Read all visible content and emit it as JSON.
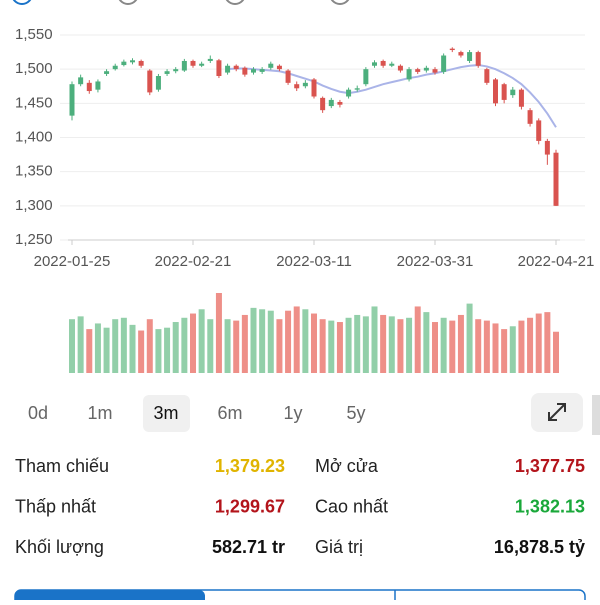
{
  "chart_data": {
    "type": "candlestick",
    "categories": [
      "2022-01-25",
      null,
      null,
      null,
      null,
      null,
      null,
      null,
      null,
      null,
      null,
      null,
      null,
      null,
      "2022-02-21",
      null,
      null,
      null,
      null,
      null,
      null,
      null,
      null,
      null,
      null,
      null,
      null,
      null,
      "2022-03-11",
      null,
      null,
      null,
      null,
      null,
      null,
      null,
      null,
      null,
      null,
      null,
      null,
      null,
      "2022-03-31",
      null,
      null,
      null,
      null,
      null,
      null,
      null,
      null,
      null,
      null,
      null,
      null,
      null,
      "2022-04-21"
    ],
    "open": [
      1432,
      1478,
      1480,
      1470,
      1493,
      1500,
      1506,
      1510,
      1512,
      1498,
      1470,
      1493,
      1497,
      1498,
      1512,
      1505,
      1512,
      1513,
      1495,
      1505,
      1502,
      1495,
      1496,
      1502,
      1505,
      1498,
      1478,
      1475,
      1485,
      1458,
      1446,
      1452,
      1460,
      1470,
      1478,
      1505,
      1512,
      1505,
      1505,
      1485,
      1500,
      1498,
      1500,
      1496,
      1530,
      1525,
      1512,
      1525,
      1500,
      1485,
      1478,
      1462,
      1470,
      1440,
      1425,
      1395,
      1377.75
    ],
    "close": [
      1478,
      1488,
      1468,
      1482,
      1497,
      1505,
      1511,
      1513,
      1505,
      1466,
      1490,
      1497,
      1500,
      1512,
      1505,
      1508,
      1515,
      1490,
      1505,
      1500,
      1492,
      1500,
      1500,
      1508,
      1500,
      1480,
      1472,
      1480,
      1460,
      1440,
      1455,
      1448,
      1470,
      1472,
      1500,
      1510,
      1505,
      1508,
      1498,
      1500,
      1496,
      1502,
      1495,
      1520,
      1528,
      1520,
      1525,
      1505,
      1480,
      1450,
      1455,
      1470,
      1445,
      1420,
      1395,
      1375,
      1300
    ],
    "high": [
      1482,
      1492,
      1484,
      1485,
      1500,
      1508,
      1514,
      1516,
      1514,
      1500,
      1493,
      1500,
      1503,
      1515,
      1514,
      1511,
      1520,
      1515,
      1508,
      1507,
      1504,
      1503,
      1503,
      1511,
      1507,
      1500,
      1482,
      1484,
      1487,
      1460,
      1458,
      1455,
      1473,
      1476,
      1503,
      1513,
      1514,
      1511,
      1507,
      1503,
      1502,
      1505,
      1503,
      1523,
      1532,
      1527,
      1528,
      1527,
      1502,
      1487,
      1480,
      1474,
      1472,
      1443,
      1428,
      1398,
      1382.13
    ],
    "low": [
      1425,
      1475,
      1464,
      1466,
      1490,
      1498,
      1504,
      1507,
      1502,
      1462,
      1467,
      1490,
      1494,
      1496,
      1502,
      1503,
      1509,
      1487,
      1492,
      1497,
      1489,
      1492,
      1493,
      1499,
      1497,
      1477,
      1468,
      1472,
      1457,
      1436,
      1443,
      1444,
      1457,
      1467,
      1475,
      1502,
      1502,
      1503,
      1495,
      1482,
      1493,
      1495,
      1492,
      1493,
      1525,
      1517,
      1509,
      1502,
      1477,
      1446,
      1450,
      1458,
      1441,
      1416,
      1390,
      1360,
      1299.67
    ],
    "ma": {
      "color": "#aab4e8",
      "values": [
        null,
        null,
        null,
        null,
        null,
        null,
        null,
        null,
        null,
        null,
        null,
        null,
        null,
        null,
        null,
        null,
        null,
        null,
        1500,
        1501,
        1501,
        1500,
        1499,
        1498,
        1497,
        1494,
        1490,
        1486,
        1482,
        1476,
        1471,
        1467,
        1465,
        1467,
        1470,
        1474,
        1478,
        1481,
        1484,
        1487,
        1489,
        1492,
        1494,
        1497,
        1500,
        1503,
        1505,
        1506,
        1504,
        1500,
        1494,
        1487,
        1478,
        1466,
        1452,
        1435,
        1415
      ]
    },
    "volume": [
      760,
      800,
      620,
      700,
      640,
      760,
      780,
      680,
      600,
      760,
      620,
      640,
      720,
      780,
      840,
      900,
      760,
      1130,
      760,
      740,
      820,
      920,
      900,
      880,
      760,
      880,
      940,
      900,
      840,
      760,
      740,
      720,
      780,
      820,
      800,
      940,
      820,
      800,
      760,
      780,
      940,
      860,
      720,
      780,
      740,
      820,
      980,
      760,
      740,
      700,
      620,
      660,
      740,
      780,
      840,
      860,
      582.71
    ],
    "ylim": [
      1250,
      1550
    ],
    "yticks": [
      {
        "value": 1250,
        "label": "1,250"
      },
      {
        "value": 1300,
        "label": "1,300"
      },
      {
        "value": 1350,
        "label": "1,350"
      },
      {
        "value": 1400,
        "label": "1,400"
      },
      {
        "value": 1450,
        "label": "1,450"
      },
      {
        "value": 1500,
        "label": "1,500"
      },
      {
        "value": 1550,
        "label": "1,550"
      }
    ],
    "grid": true,
    "up_color": "#4caf7d",
    "down_color": "#d9534f",
    "up_volume_color": "#92cfa9",
    "down_volume_color": "#ee8f88"
  },
  "periods": [
    "0d",
    "1m",
    "3m",
    "6m",
    "1y",
    "5y"
  ],
  "selected_period": 2,
  "stats": [
    {
      "label": "Tham chiếu",
      "value": "1,379.23",
      "color": "#e0b400"
    },
    {
      "label": "Mở cửa",
      "value": "1,377.75",
      "color": "#b3141b"
    },
    {
      "label": "Thấp nhất",
      "value": "1,299.67",
      "color": "#b3141b"
    },
    {
      "label": "Cao nhất",
      "value": "1,382.13",
      "color": "#1aa83a"
    },
    {
      "label": "Khối lượng",
      "value": "582.71 tr",
      "color": "#111111"
    },
    {
      "label": "Giá trị",
      "value": "16,878.5 tỷ",
      "color": "#111111"
    }
  ]
}
